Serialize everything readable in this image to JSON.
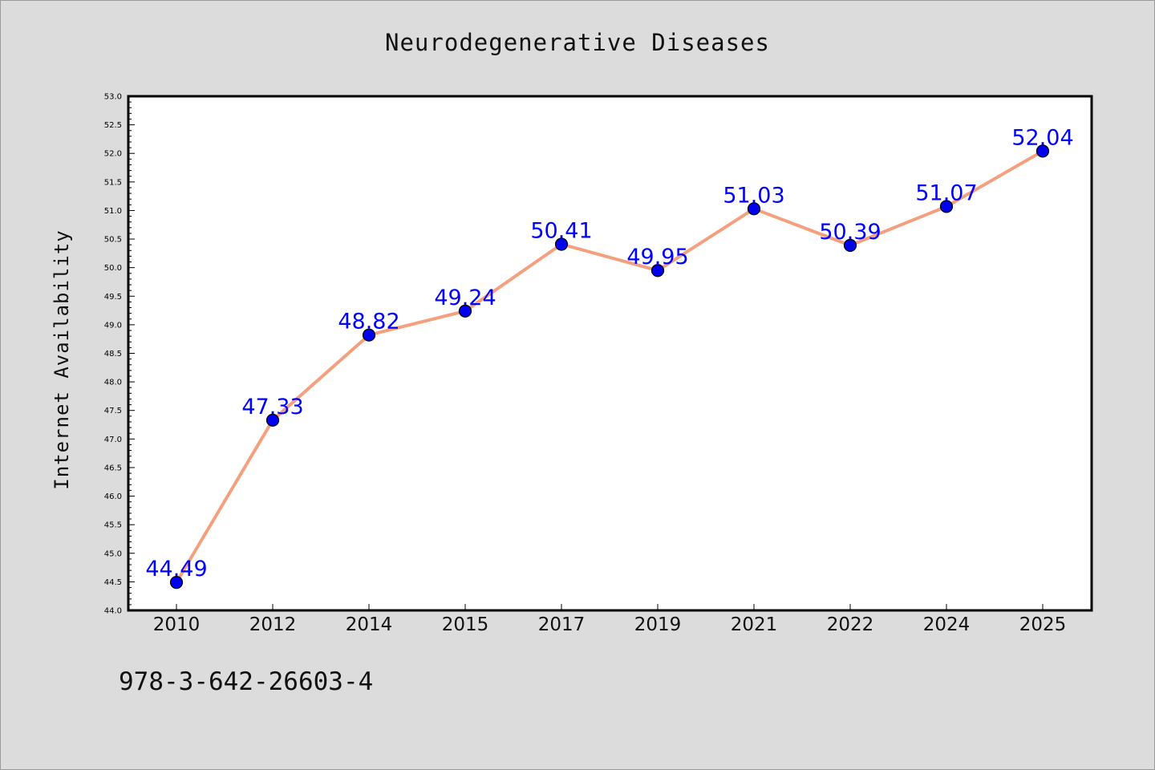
{
  "footer_text": "978-3-642-26603-4",
  "chart_data": {
    "type": "line",
    "title": "Neurodegenerative Diseases",
    "xlabel": "",
    "ylabel": "Internet Availability",
    "categories": [
      "2010",
      "2012",
      "2014",
      "2015",
      "2017",
      "2019",
      "2021",
      "2022",
      "2024",
      "2025"
    ],
    "series": [
      {
        "values": [
          44.49,
          47.33,
          48.82,
          49.24,
          50.41,
          49.95,
          51.03,
          50.39,
          51.07,
          52.04
        ],
        "labels": [
          "44.49",
          "47.33",
          "48.82",
          "49.24",
          "50.41",
          "49.95",
          "51.03",
          "50.39",
          "51.07",
          "52.04"
        ]
      }
    ],
    "ylim": [
      44.0,
      53.0
    ],
    "yticks": [
      "44.0",
      "44.5",
      "45.0",
      "45.5",
      "46.0",
      "46.5",
      "47.0",
      "47.5",
      "48.0",
      "48.5",
      "49.0",
      "49.5",
      "50.0",
      "50.5",
      "51.0",
      "51.5",
      "52.0",
      "52.5",
      "53.0"
    ],
    "grid": false,
    "colors": {
      "line": "#f4a07e",
      "marker": "#0000ee",
      "data_label": "#0000ff",
      "plot_bg": "#ffffff",
      "axis": "#000000"
    }
  }
}
